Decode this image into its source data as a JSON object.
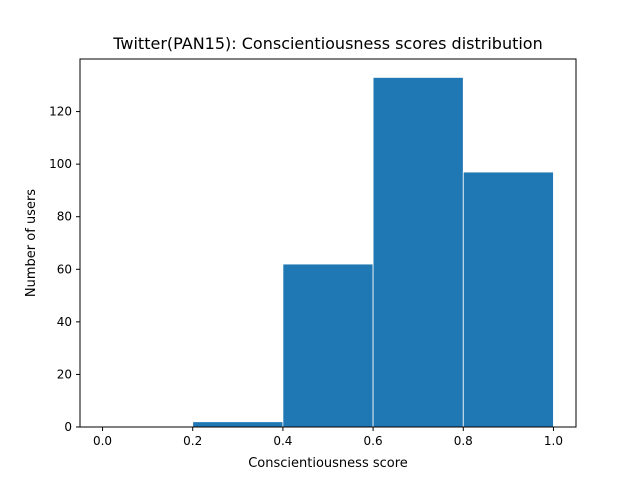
{
  "chart_data": {
    "type": "bar",
    "title": "Twitter(PAN15): Conscientiousness scores distribution",
    "xlabel": "Conscientiousness score",
    "ylabel": "Number of users",
    "bins": [
      {
        "x0": 0.0,
        "x1": 0.2,
        "value": 0
      },
      {
        "x0": 0.2,
        "x1": 0.4,
        "value": 2
      },
      {
        "x0": 0.4,
        "x1": 0.6,
        "value": 62
      },
      {
        "x0": 0.6,
        "x1": 0.8,
        "value": 133
      },
      {
        "x0": 0.8,
        "x1": 1.0,
        "value": 97
      }
    ],
    "xlim": [
      -0.05,
      1.05
    ],
    "ylim": [
      0,
      140
    ],
    "xticks": [
      "0.0",
      "0.2",
      "0.4",
      "0.6",
      "0.8",
      "1.0"
    ],
    "yticks": [
      "0",
      "20",
      "40",
      "60",
      "80",
      "100",
      "120"
    ],
    "bar_color": "#1f77b4",
    "grid": false,
    "legend": "none"
  }
}
